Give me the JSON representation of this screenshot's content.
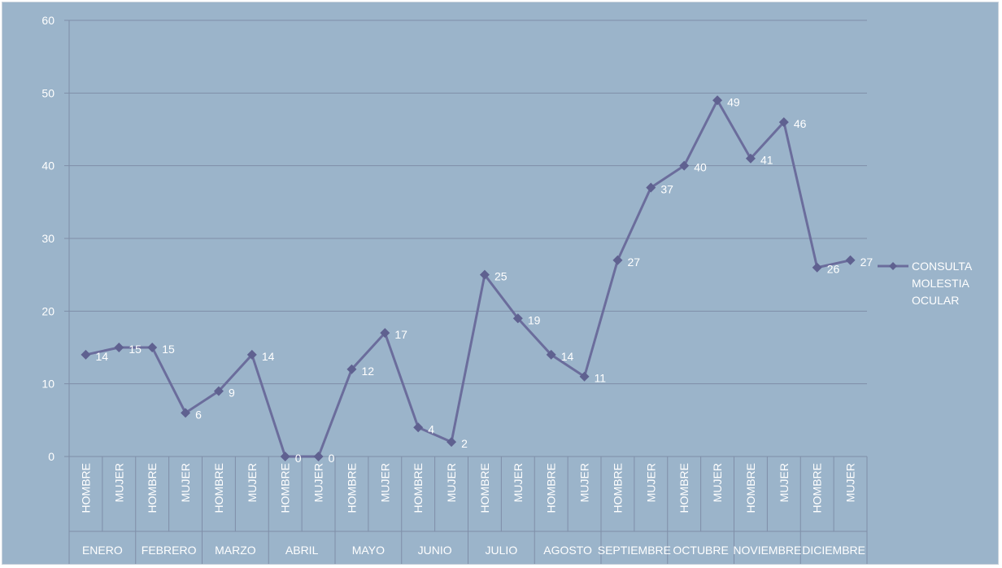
{
  "chart_data": {
    "type": "line",
    "title": "",
    "xlabel": "",
    "ylabel": "",
    "ylim": [
      0,
      60
    ],
    "yticks": [
      0,
      10,
      20,
      30,
      40,
      50,
      60
    ],
    "grid": true,
    "legend_position": "right",
    "groups": [
      "ENERO",
      "FEBRERO",
      "MARZO",
      "ABRIL",
      "MAYO",
      "JUNIO",
      "JULIO",
      "AGOSTO",
      "SEPTIEMBRE",
      "OCTUBRE",
      "NOVIEMBRE",
      "DICIEMBRE"
    ],
    "subcategories": [
      "HOMBRE",
      "MUJER"
    ],
    "categories": [
      "ENERO HOMBRE",
      "ENERO MUJER",
      "FEBRERO HOMBRE",
      "FEBRERO MUJER",
      "MARZO HOMBRE",
      "MARZO MUJER",
      "ABRIL HOMBRE",
      "ABRIL MUJER",
      "MAYO HOMBRE",
      "MAYO MUJER",
      "JUNIO HOMBRE",
      "JUNIO MUJER",
      "JULIO HOMBRE",
      "JULIO MUJER",
      "AGOSTO HOMBRE",
      "AGOSTO MUJER",
      "SEPTIEMBRE HOMBRE",
      "SEPTIEMBRE MUJER",
      "OCTUBRE HOMBRE",
      "OCTUBRE MUJER",
      "NOVIEMBRE HOMBRE",
      "NOVIEMBRE MUJER",
      "DICIEMBRE HOMBRE",
      "DICIEMBRE MUJER"
    ],
    "series": [
      {
        "name": "CONSULTA MOLESTIA OCULAR",
        "values": [
          14,
          15,
          15,
          6,
          9,
          14,
          0,
          0,
          12,
          17,
          4,
          2,
          25,
          19,
          14,
          11,
          27,
          37,
          40,
          49,
          41,
          46,
          26,
          27
        ]
      }
    ],
    "legend_lines": [
      "CONSULTA",
      "MOLESTIA",
      "OCULAR"
    ],
    "colors": {
      "background": "#9bb4ca",
      "line": "#6b6d9c",
      "marker": "#5f6190",
      "grid": "#7f8ea8",
      "text": "#ffffff"
    }
  }
}
